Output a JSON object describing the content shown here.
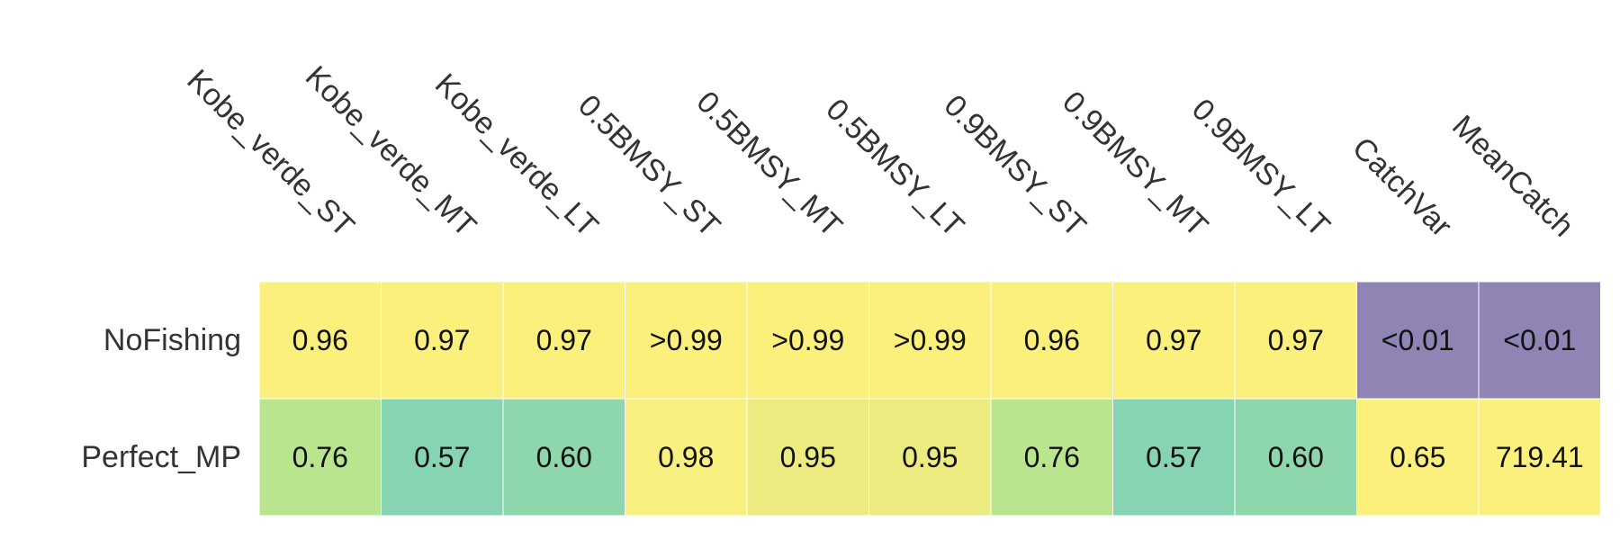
{
  "chart_data": {
    "type": "heatmap",
    "columns": [
      "Kobe_verde_ST",
      "Kobe_verde_MT",
      "Kobe_verde_LT",
      "0.5BMSY_ST",
      "0.5BMSY_MT",
      "0.5BMSY_LT",
      "0.9BMSY_ST",
      "0.9BMSY_MT",
      "0.9BMSY_LT",
      "CatchVar",
      "MeanCatch"
    ],
    "rows": [
      "NoFishing",
      "Perfect_MP"
    ],
    "cells": [
      [
        "0.96",
        "0.97",
        "0.97",
        ">0.99",
        ">0.99",
        ">0.99",
        "0.96",
        "0.97",
        "0.97",
        "<0.01",
        "<0.01"
      ],
      [
        "0.76",
        "0.57",
        "0.60",
        "0.98",
        "0.95",
        "0.95",
        "0.76",
        "0.57",
        "0.60",
        "0.65",
        "719.41"
      ]
    ],
    "colors": [
      [
        "#fcf07c",
        "#fcf07c",
        "#fcf07c",
        "#fcf07c",
        "#fcf07c",
        "#fcf07c",
        "#fcf07c",
        "#fcf07c",
        "#fcf07c",
        "#8f84b4",
        "#8f84b4"
      ],
      [
        "#b9e58f",
        "#86d4b2",
        "#8ed6ab",
        "#f7ef7e",
        "#ebeb7f",
        "#ebeb7f",
        "#b9e58f",
        "#86d4b2",
        "#8ed6ab",
        "#fcf07c",
        "#fcf07c"
      ]
    ],
    "grid_color": "#ffffff",
    "text_color": "#111111",
    "label_color": "#333333"
  }
}
